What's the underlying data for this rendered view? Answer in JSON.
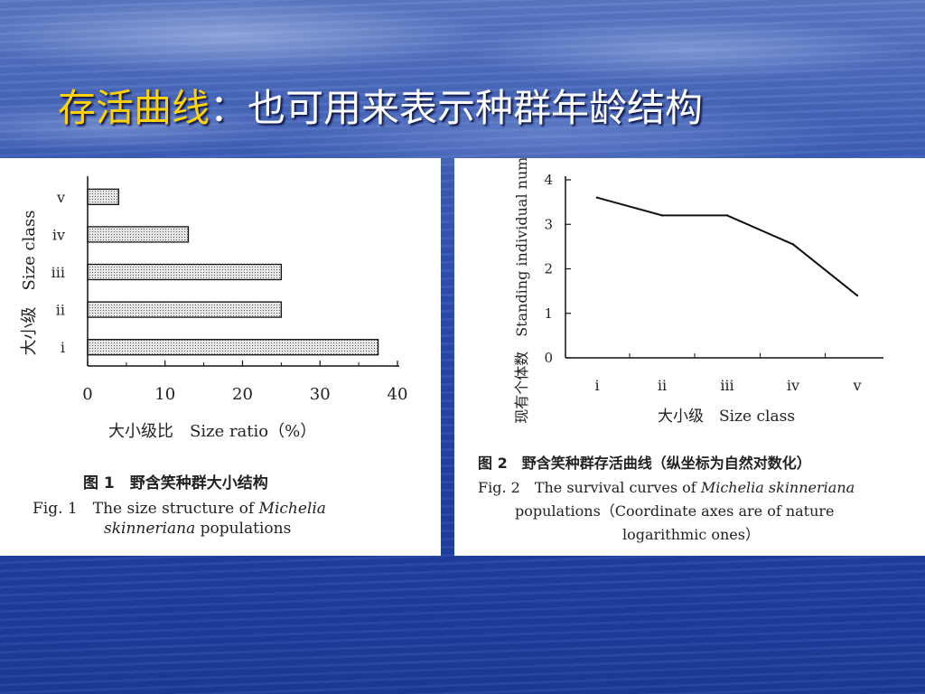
{
  "slide": {
    "title_highlight": "存活曲线",
    "title_rest": "：也可用来表示种群年龄结构"
  },
  "figure1": {
    "caption_zh": "图 1　野含笑种群大小结构",
    "caption_en_prefix": "Fig. 1　The size structure of ",
    "caption_en_italic1": "Michelia",
    "caption_en_italic2": "skinneriana",
    "caption_en_suffix": " populations"
  },
  "figure2": {
    "caption_zh": "图 2　野含笑种群存活曲线（纵坐标为自然对数化）",
    "caption_en_prefix": "Fig. 2　The survival curves of ",
    "caption_en_italic": "Michelia skinneriana",
    "caption_en_line2": "populations（Coordinate axes are of nature",
    "caption_en_line3": "logarithmic ones）"
  },
  "chart_data": [
    {
      "type": "bar",
      "orientation": "horizontal",
      "categories": [
        "i",
        "ii",
        "iii",
        "iv",
        "v"
      ],
      "values": [
        37.5,
        25,
        25,
        13,
        4
      ],
      "xlabel": "大小级比　Size ratio（%）",
      "ylabel": "大小级　Size class",
      "xlim": [
        0,
        40
      ],
      "xticks": [
        "0",
        "10",
        "20",
        "30",
        "40"
      ],
      "grid": false,
      "bar_fill": "#c8c8c8"
    },
    {
      "type": "line",
      "categories": [
        "i",
        "ii",
        "iii",
        "iv",
        "v"
      ],
      "values": [
        3.6,
        3.2,
        3.2,
        2.55,
        1.4
      ],
      "xlabel": "大小级　Size class",
      "ylabel": "现有个体数　Standing individual number",
      "ylim": [
        0,
        4
      ],
      "yticks": [
        "0",
        "1",
        "2",
        "3",
        "4"
      ],
      "grid": false
    }
  ]
}
